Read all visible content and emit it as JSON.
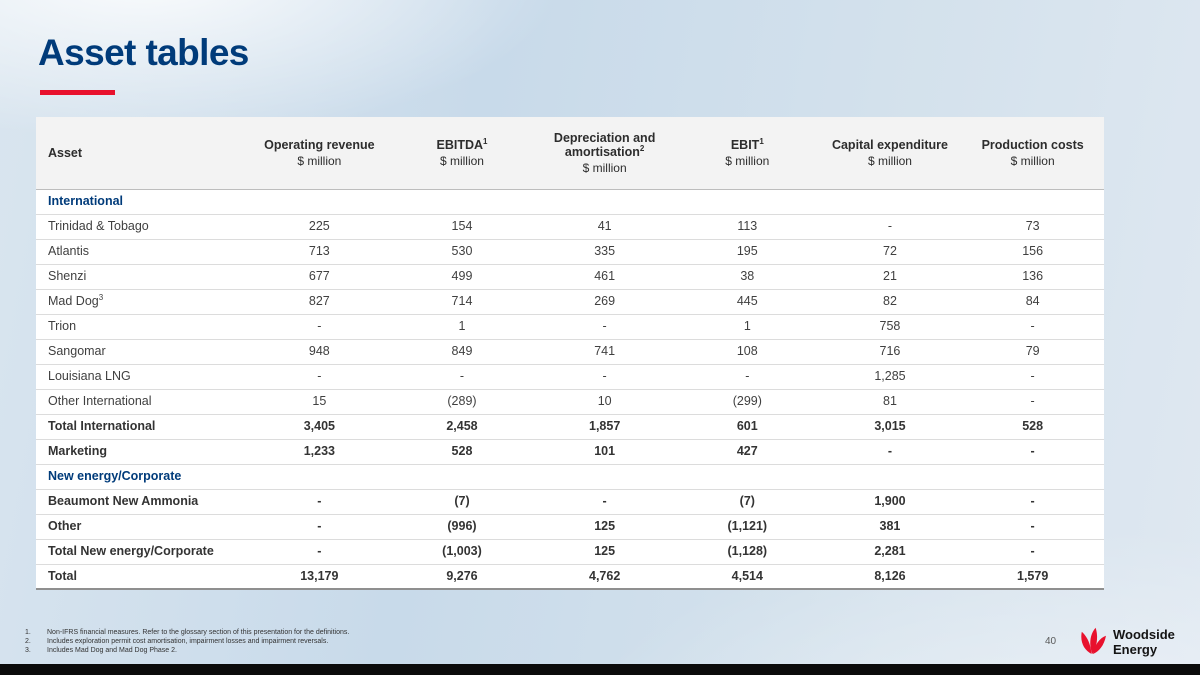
{
  "slide": {
    "title": "Asset tables",
    "page_number": "40"
  },
  "colors": {
    "title_blue": "#003b7a",
    "accent_red": "#e8112d",
    "section_blue": "#003b7a"
  },
  "logo": {
    "line1": "Woodside",
    "line2": "Energy",
    "icon": "woodside-flame-icon"
  },
  "table": {
    "columns": [
      {
        "label": "Asset",
        "sup": "",
        "sub": ""
      },
      {
        "label": "Operating revenue",
        "sup": "",
        "sub": "$ million"
      },
      {
        "label": "EBITDA",
        "sup": "1",
        "sub": "$ million"
      },
      {
        "label": "Depreciation and amortisation",
        "sup": "2",
        "sub": "$ million"
      },
      {
        "label": "EBIT",
        "sup": "1",
        "sub": "$ million"
      },
      {
        "label": "Capital expenditure",
        "sup": "",
        "sub": "$ million"
      },
      {
        "label": "Production costs",
        "sup": "",
        "sub": "$ million"
      }
    ],
    "rows": [
      {
        "type": "section",
        "name": "International",
        "sup": "",
        "values": []
      },
      {
        "type": "data",
        "name": "Trinidad & Tobago",
        "sup": "",
        "values": [
          "225",
          "154",
          "41",
          "113",
          "-",
          "73"
        ]
      },
      {
        "type": "data",
        "name": "Atlantis",
        "sup": "",
        "values": [
          "713",
          "530",
          "335",
          "195",
          "72",
          "156"
        ]
      },
      {
        "type": "data",
        "name": "Shenzi",
        "sup": "",
        "values": [
          "677",
          "499",
          "461",
          "38",
          "21",
          "136"
        ]
      },
      {
        "type": "data",
        "name": "Mad Dog",
        "sup": "3",
        "values": [
          "827",
          "714",
          "269",
          "445",
          "82",
          "84"
        ]
      },
      {
        "type": "data",
        "name": "Trion",
        "sup": "",
        "values": [
          "-",
          "1",
          "-",
          "1",
          "758",
          "-"
        ]
      },
      {
        "type": "data",
        "name": "Sangomar",
        "sup": "",
        "values": [
          "948",
          "849",
          "741",
          "108",
          "716",
          "79"
        ]
      },
      {
        "type": "data",
        "name": "Louisiana LNG",
        "sup": "",
        "values": [
          "-",
          "-",
          "-",
          "-",
          "1,285",
          "-"
        ]
      },
      {
        "type": "data",
        "name": "Other International",
        "sup": "",
        "values": [
          "15",
          "(289)",
          "10",
          "(299)",
          "81",
          "-"
        ]
      },
      {
        "type": "total",
        "name": "Total International",
        "sup": "",
        "values": [
          "3,405",
          "2,458",
          "1,857",
          "601",
          "3,015",
          "528"
        ]
      },
      {
        "type": "total",
        "name": "Marketing",
        "sup": "",
        "values": [
          "1,233",
          "528",
          "101",
          "427",
          "-",
          "-"
        ]
      },
      {
        "type": "section",
        "name": "New energy/Corporate",
        "sup": "",
        "values": []
      },
      {
        "type": "bold",
        "name": "Beaumont New Ammonia",
        "sup": "",
        "values": [
          "-",
          "(7)",
          "-",
          "(7)",
          "1,900",
          "-"
        ]
      },
      {
        "type": "bold",
        "name": "Other",
        "sup": "",
        "values": [
          "-",
          "(996)",
          "125",
          "(1,121)",
          "381",
          "-"
        ]
      },
      {
        "type": "total",
        "name": "Total New energy/Corporate",
        "sup": "",
        "values": [
          "-",
          "(1,003)",
          "125",
          "(1,128)",
          "2,281",
          "-"
        ]
      },
      {
        "type": "total",
        "name": "Total",
        "sup": "",
        "values": [
          "13,179",
          "9,276",
          "4,762",
          "4,514",
          "8,126",
          "1,579"
        ]
      }
    ]
  },
  "footnotes": [
    "Non-IFRS financial measures. Refer to the glossary section of this presentation for the definitions.",
    "Includes exploration permit cost amortisation, impairment losses and impairment reversals.",
    "Includes Mad Dog and Mad Dog Phase 2."
  ]
}
